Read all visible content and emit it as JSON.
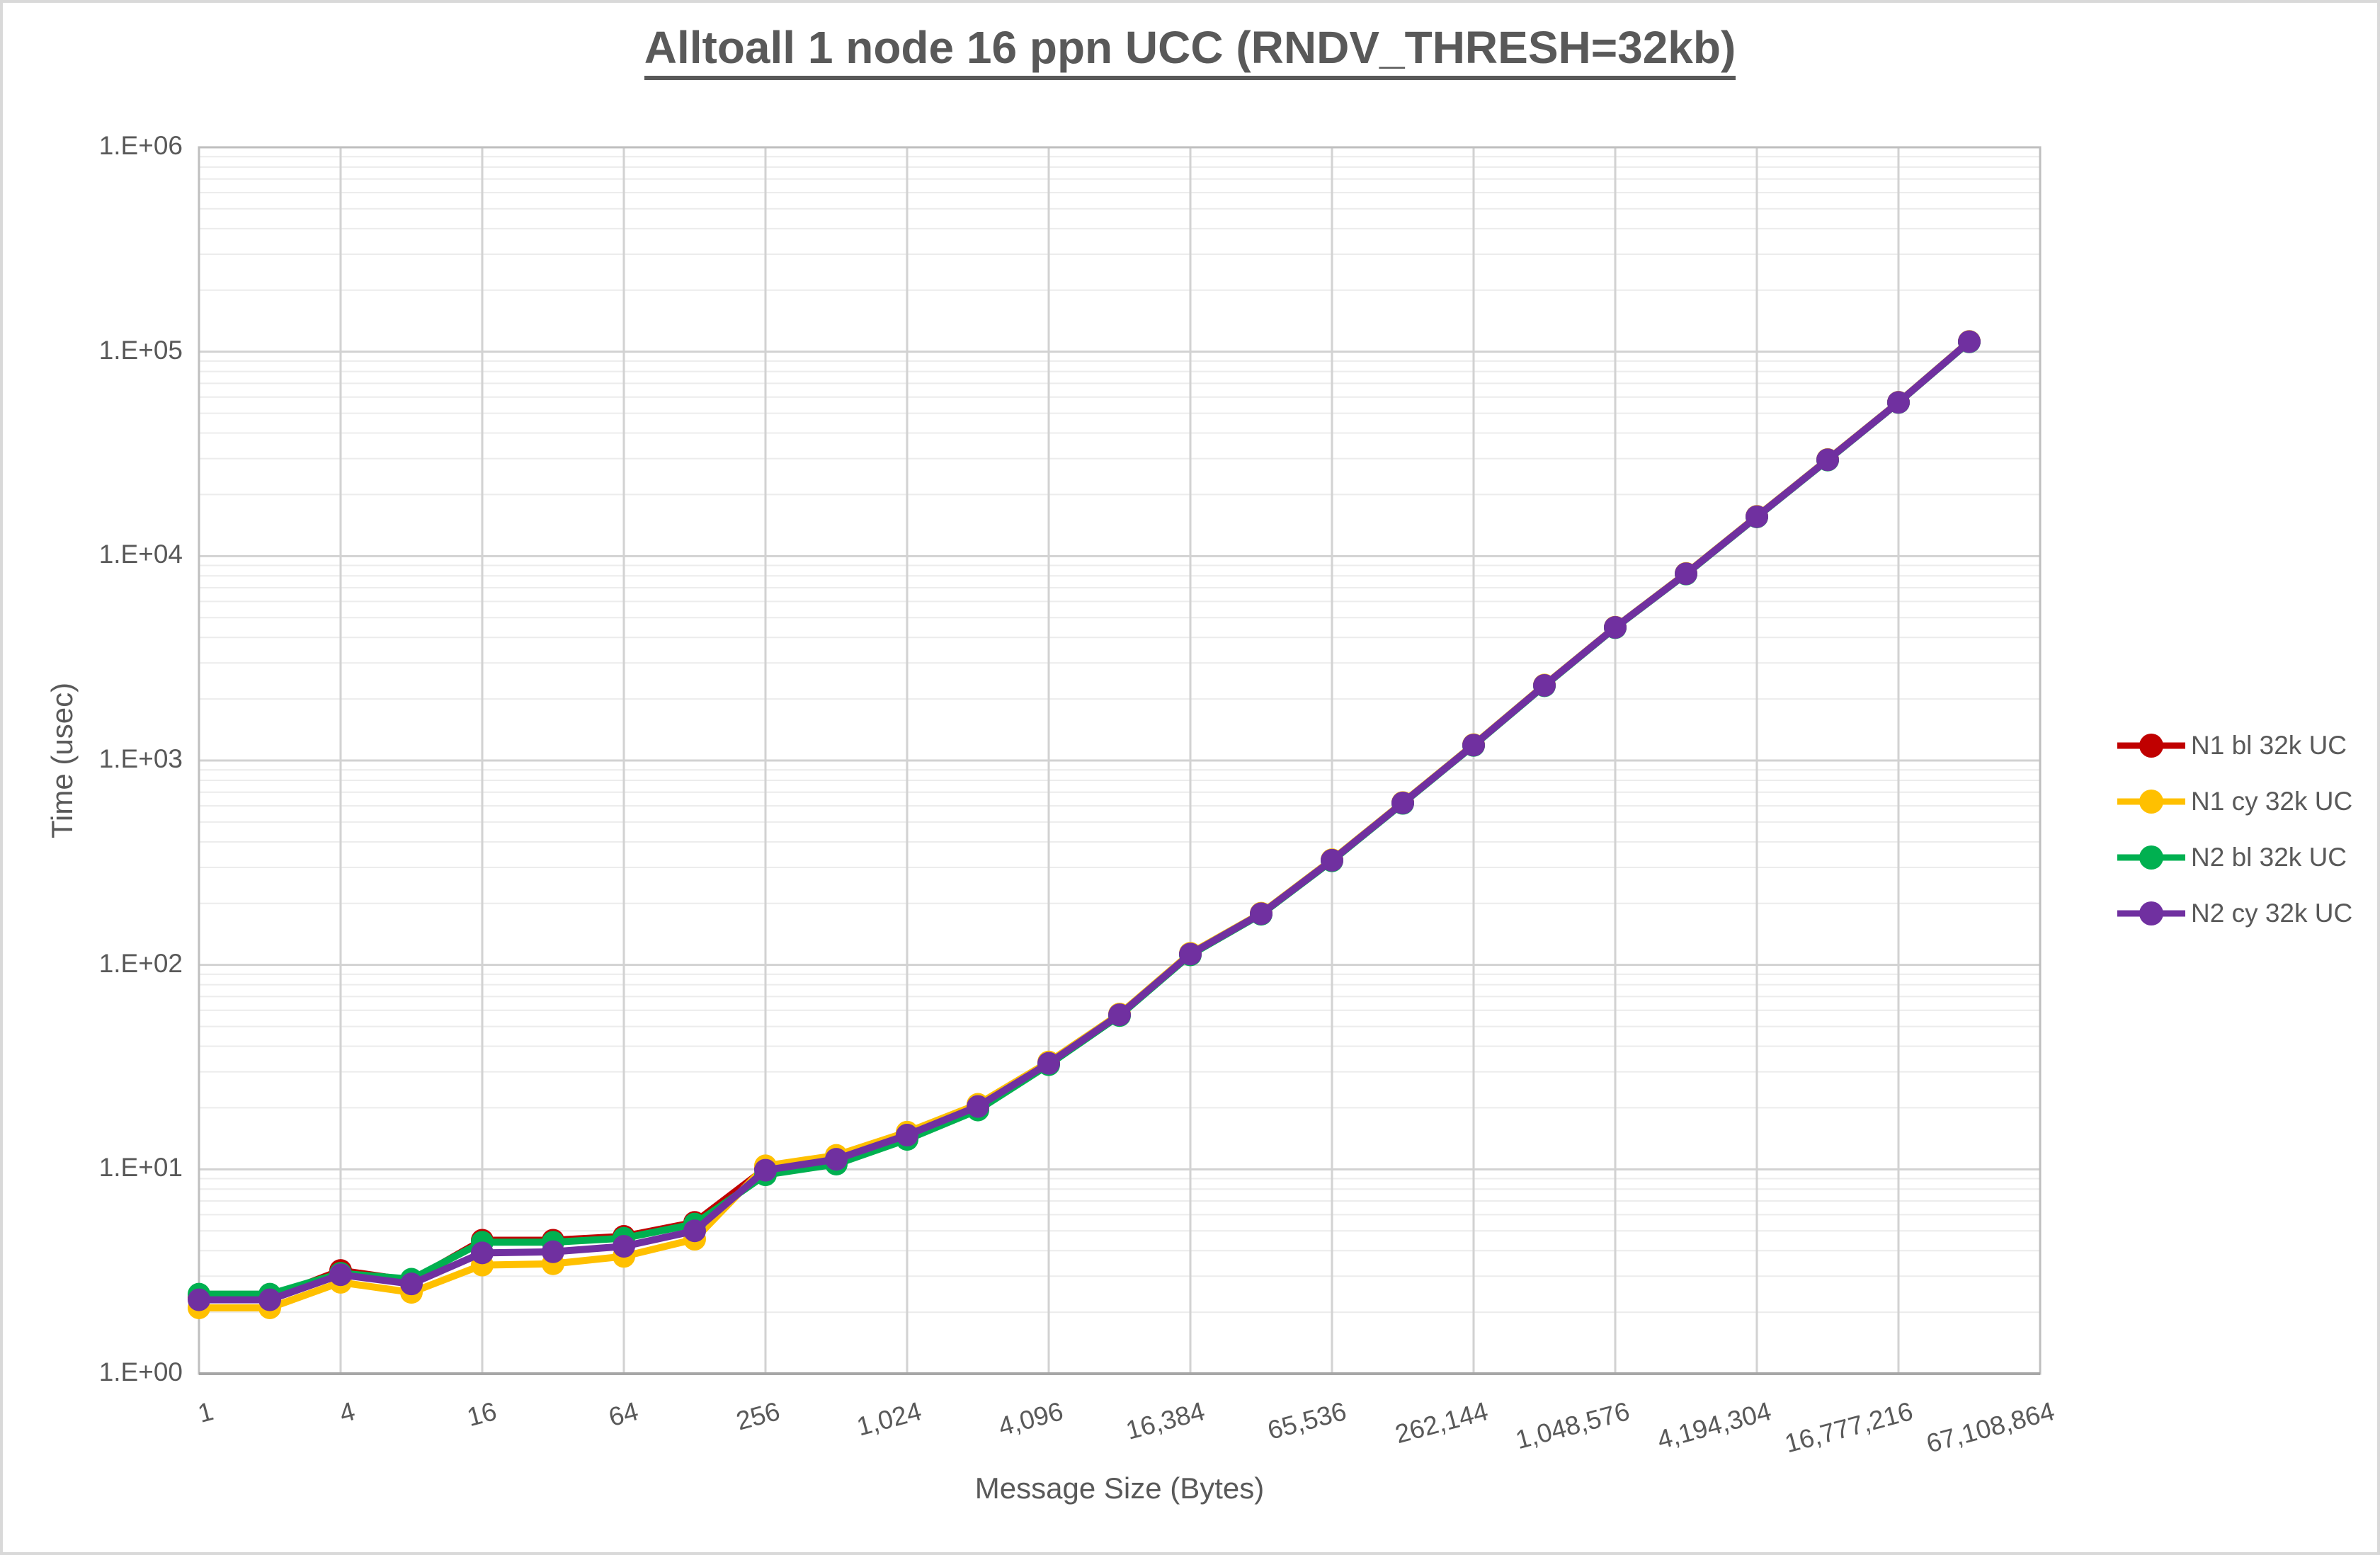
{
  "chart_data": {
    "type": "line",
    "title": "Alltoall 1 node 16 ppn UCC (RNDV_THRESH=32kb)",
    "xlabel": "Message Size (Bytes)",
    "ylabel": "Time (usec)",
    "x_scale": "log2",
    "y_scale": "log10",
    "ylim": [
      1,
      1000000
    ],
    "xlim": [
      1,
      67108864
    ],
    "grid": "major-and-minor-horizontal, major-vertical",
    "legend_position": "right",
    "y_tick_labels": [
      "1.E+00",
      "1.E+01",
      "1.E+02",
      "1.E+03",
      "1.E+04",
      "1.E+05",
      "1.E+06"
    ],
    "x_tick_labels": [
      "1",
      "4",
      "16",
      "64",
      "256",
      "1,024",
      "4,096",
      "16,384",
      "65,536",
      "262,144",
      "1,048,576",
      "4,194,304",
      "16,777,216",
      "67,108,864"
    ],
    "sizes": [
      1,
      2,
      4,
      8,
      16,
      32,
      64,
      128,
      256,
      512,
      1024,
      2048,
      4096,
      8192,
      16384,
      32768,
      65536,
      131072,
      262144,
      524288,
      1048576,
      2097152,
      4194304,
      8388608,
      16777216,
      33554432
    ],
    "series": [
      {
        "name": "N1 bl 32k UC",
        "color": "#C00000",
        "values": [
          2.35,
          2.35,
          3.2,
          2.85,
          4.5,
          4.5,
          4.7,
          5.5,
          10.1,
          11.3,
          14.8,
          20.3,
          33,
          57,
          113,
          178,
          325,
          620,
          1190,
          2330,
          4480,
          8200,
          15600,
          29600,
          56500,
          112000
        ]
      },
      {
        "name": "N1 cy 32k UC",
        "color": "#FFC000",
        "values": [
          2.1,
          2.1,
          2.8,
          2.5,
          3.4,
          3.45,
          3.75,
          4.55,
          10.4,
          11.7,
          15.2,
          20.8,
          33.5,
          57.5,
          114,
          179,
          327,
          623,
          1195,
          2340,
          4490,
          8230,
          15650,
          29700,
          56600,
          112300
        ]
      },
      {
        "name": "N2 bl 32k UC",
        "color": "#00B050",
        "values": [
          2.45,
          2.45,
          3.1,
          2.9,
          4.4,
          4.4,
          4.6,
          5.4,
          9.4,
          10.6,
          14.0,
          19.5,
          32.5,
          56.5,
          112,
          177,
          323,
          617,
          1185,
          2320,
          4465,
          8170,
          15550,
          29500,
          56400,
          111700
        ]
      },
      {
        "name": "N2 cy 32k UC",
        "color": "#7030A0",
        "values": [
          2.3,
          2.3,
          3.05,
          2.75,
          3.9,
          3.95,
          4.2,
          5.0,
          9.9,
          11.2,
          14.7,
          20.3,
          33,
          57,
          113,
          178,
          325,
          620,
          1190,
          2330,
          4480,
          8200,
          15600,
          29600,
          56500,
          112000
        ]
      }
    ]
  },
  "style_colors": {
    "text": "#595959",
    "major_grid": "#d2d2d2",
    "minor_grid": "#ececec",
    "plot_border": "#bfbfbf",
    "axis_line": "#a6a6a6"
  }
}
